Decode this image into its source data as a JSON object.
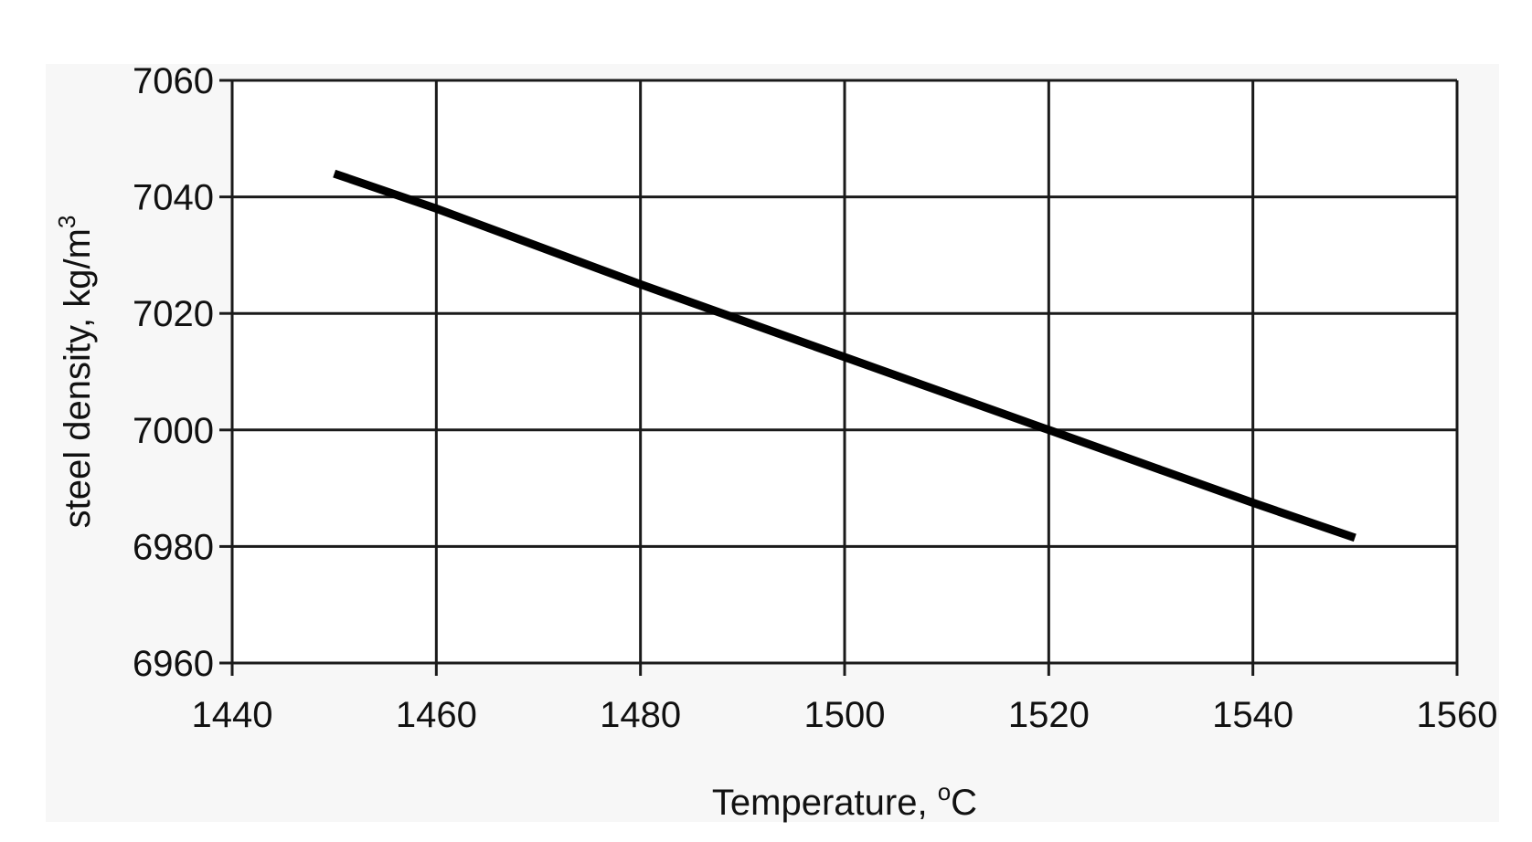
{
  "chart_data": {
    "type": "line",
    "title": "",
    "xlabel": "Temperature, ",
    "xlabel_sup": "o",
    "xlabel_unit": "C",
    "ylabel": "steel density, kg/m",
    "ylabel_sup": "3",
    "xlim": [
      1440,
      1560
    ],
    "ylim": [
      6960,
      7060
    ],
    "x_ticks": [
      1440,
      1460,
      1480,
      1500,
      1520,
      1540,
      1560
    ],
    "y_ticks": [
      6960,
      6980,
      7000,
      7020,
      7040,
      7060
    ],
    "grid": true,
    "legend": "none",
    "series": [
      {
        "color": "#000000",
        "x": [
          1450,
          1460,
          1480,
          1500,
          1520,
          1540,
          1550
        ],
        "y": [
          7044,
          7038,
          7025,
          7012.5,
          7000,
          6987.5,
          6981.5
        ]
      }
    ]
  }
}
